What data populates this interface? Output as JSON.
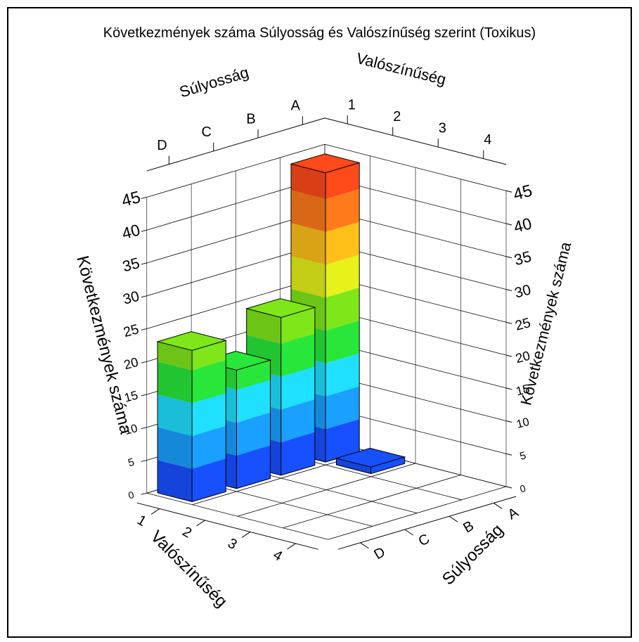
{
  "chart_data": {
    "type": "bar3d",
    "title": "Következmények száma Súlyosság és Valószínűség szerint (Toxikus)",
    "severity_axis_label": "Súlyosság",
    "probability_axis_label": "Valószínűség",
    "value_axis_label": "Következmények száma",
    "severity_categories": [
      "A",
      "B",
      "C",
      "D"
    ],
    "probability_categories": [
      "1",
      "2",
      "3",
      "4"
    ],
    "value_ticks": [
      "0",
      "5",
      "10",
      "15",
      "20",
      "25",
      "30",
      "35",
      "40",
      "45"
    ],
    "zlim": [
      0,
      45
    ],
    "bars": [
      {
        "severity": "D",
        "probability": "1",
        "value": 23
      },
      {
        "severity": "C",
        "probability": "1",
        "value": 18
      },
      {
        "severity": "B",
        "probability": "1",
        "value": 24
      },
      {
        "severity": "A",
        "probability": "1",
        "value": 44
      },
      {
        "severity": "A",
        "probability": "2",
        "value": 1
      }
    ],
    "colormap": [
      "#1750ff",
      "#1aa0ff",
      "#1fe0ff",
      "#29e63a",
      "#7fe61a",
      "#e6f21a",
      "#ffc01a",
      "#ff7a1a",
      "#ff4a1a"
    ]
  }
}
